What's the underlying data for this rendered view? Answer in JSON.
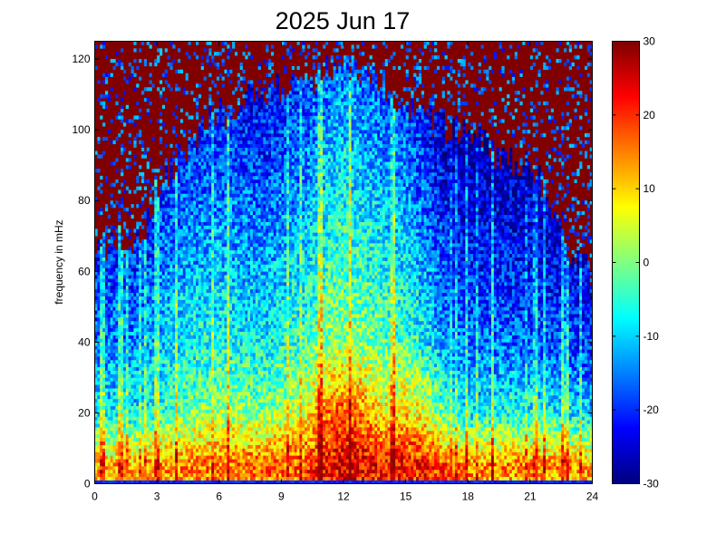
{
  "chart_data": {
    "type": "heatmap",
    "title": "2025 Jun 17",
    "xlabel": "",
    "ylabel": "frequency in mHz",
    "xlim": [
      0,
      24
    ],
    "ylim": [
      0,
      125
    ],
    "x_ticks": [
      "0",
      "3",
      "6",
      "9",
      "12",
      "15",
      "18",
      "21",
      "24"
    ],
    "y_ticks": [
      "0",
      "20",
      "40",
      "60",
      "80",
      "100",
      "120"
    ],
    "colorbar": {
      "range": [
        -30,
        30
      ],
      "ticks": [
        "-30",
        "-20",
        "-10",
        "0",
        "10",
        "20",
        "30"
      ],
      "colormap": "jet",
      "location": "right"
    },
    "grid": false,
    "z_saturated_value": 30,
    "grid_size": {
      "time_bins": 192,
      "frequency_bins": 125
    },
    "noise_ceiling_profile": {
      "hour": [
        0,
        1,
        2,
        3,
        4,
        5,
        6,
        7,
        8,
        9,
        10,
        11,
        12,
        13,
        14,
        15,
        16,
        17,
        18,
        19,
        20,
        21,
        22,
        23,
        24
      ],
      "ceiling_mHz": [
        64,
        70,
        66,
        84,
        92,
        100,
        104,
        108,
        112,
        112,
        114,
        116,
        118,
        116,
        112,
        106,
        104,
        100,
        98,
        95,
        92,
        90,
        80,
        65,
        60
      ]
    },
    "level_profile": {
      "hour": [
        0,
        2,
        4,
        6,
        8,
        10,
        11,
        12,
        13,
        14,
        15,
        16,
        17,
        18,
        20,
        22,
        24
      ],
      "level_at_5mHz": [
        12,
        13,
        15,
        16,
        17,
        18,
        22,
        24,
        23,
        22,
        22,
        22,
        18,
        15,
        15,
        14,
        13
      ],
      "level_at_20mHz": [
        -8,
        -8,
        -2,
        2,
        0,
        4,
        14,
        18,
        14,
        8,
        10,
        6,
        -4,
        -8,
        -6,
        -8,
        -10
      ],
      "level_at_40mHz": [
        -16,
        -14,
        -8,
        -6,
        -8,
        -4,
        0,
        2,
        0,
        -2,
        -4,
        -8,
        -14,
        -16,
        -16,
        -18,
        -20
      ]
    }
  }
}
